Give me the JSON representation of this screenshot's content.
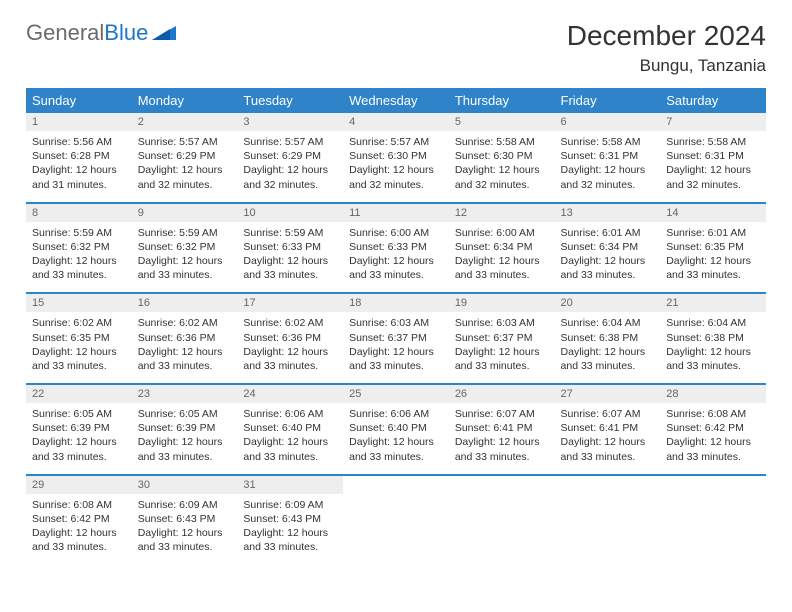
{
  "brand": {
    "part1": "General",
    "part2": "Blue"
  },
  "title": "December 2024",
  "location": "Bungu, Tanzania",
  "colors": {
    "header_blue": "#2e83c9",
    "daynum_bg": "#eeeeee",
    "text": "#333333",
    "logo_gray": "#6b6b6b",
    "logo_blue": "#1f75c9"
  },
  "day_headers": [
    "Sunday",
    "Monday",
    "Tuesday",
    "Wednesday",
    "Thursday",
    "Friday",
    "Saturday"
  ],
  "weeks": [
    [
      {
        "n": "1",
        "sr": "5:56 AM",
        "ss": "6:28 PM",
        "dl": "12 hours and 31 minutes."
      },
      {
        "n": "2",
        "sr": "5:57 AM",
        "ss": "6:29 PM",
        "dl": "12 hours and 32 minutes."
      },
      {
        "n": "3",
        "sr": "5:57 AM",
        "ss": "6:29 PM",
        "dl": "12 hours and 32 minutes."
      },
      {
        "n": "4",
        "sr": "5:57 AM",
        "ss": "6:30 PM",
        "dl": "12 hours and 32 minutes."
      },
      {
        "n": "5",
        "sr": "5:58 AM",
        "ss": "6:30 PM",
        "dl": "12 hours and 32 minutes."
      },
      {
        "n": "6",
        "sr": "5:58 AM",
        "ss": "6:31 PM",
        "dl": "12 hours and 32 minutes."
      },
      {
        "n": "7",
        "sr": "5:58 AM",
        "ss": "6:31 PM",
        "dl": "12 hours and 32 minutes."
      }
    ],
    [
      {
        "n": "8",
        "sr": "5:59 AM",
        "ss": "6:32 PM",
        "dl": "12 hours and 33 minutes."
      },
      {
        "n": "9",
        "sr": "5:59 AM",
        "ss": "6:32 PM",
        "dl": "12 hours and 33 minutes."
      },
      {
        "n": "10",
        "sr": "5:59 AM",
        "ss": "6:33 PM",
        "dl": "12 hours and 33 minutes."
      },
      {
        "n": "11",
        "sr": "6:00 AM",
        "ss": "6:33 PM",
        "dl": "12 hours and 33 minutes."
      },
      {
        "n": "12",
        "sr": "6:00 AM",
        "ss": "6:34 PM",
        "dl": "12 hours and 33 minutes."
      },
      {
        "n": "13",
        "sr": "6:01 AM",
        "ss": "6:34 PM",
        "dl": "12 hours and 33 minutes."
      },
      {
        "n": "14",
        "sr": "6:01 AM",
        "ss": "6:35 PM",
        "dl": "12 hours and 33 minutes."
      }
    ],
    [
      {
        "n": "15",
        "sr": "6:02 AM",
        "ss": "6:35 PM",
        "dl": "12 hours and 33 minutes."
      },
      {
        "n": "16",
        "sr": "6:02 AM",
        "ss": "6:36 PM",
        "dl": "12 hours and 33 minutes."
      },
      {
        "n": "17",
        "sr": "6:02 AM",
        "ss": "6:36 PM",
        "dl": "12 hours and 33 minutes."
      },
      {
        "n": "18",
        "sr": "6:03 AM",
        "ss": "6:37 PM",
        "dl": "12 hours and 33 minutes."
      },
      {
        "n": "19",
        "sr": "6:03 AM",
        "ss": "6:37 PM",
        "dl": "12 hours and 33 minutes."
      },
      {
        "n": "20",
        "sr": "6:04 AM",
        "ss": "6:38 PM",
        "dl": "12 hours and 33 minutes."
      },
      {
        "n": "21",
        "sr": "6:04 AM",
        "ss": "6:38 PM",
        "dl": "12 hours and 33 minutes."
      }
    ],
    [
      {
        "n": "22",
        "sr": "6:05 AM",
        "ss": "6:39 PM",
        "dl": "12 hours and 33 minutes."
      },
      {
        "n": "23",
        "sr": "6:05 AM",
        "ss": "6:39 PM",
        "dl": "12 hours and 33 minutes."
      },
      {
        "n": "24",
        "sr": "6:06 AM",
        "ss": "6:40 PM",
        "dl": "12 hours and 33 minutes."
      },
      {
        "n": "25",
        "sr": "6:06 AM",
        "ss": "6:40 PM",
        "dl": "12 hours and 33 minutes."
      },
      {
        "n": "26",
        "sr": "6:07 AM",
        "ss": "6:41 PM",
        "dl": "12 hours and 33 minutes."
      },
      {
        "n": "27",
        "sr": "6:07 AM",
        "ss": "6:41 PM",
        "dl": "12 hours and 33 minutes."
      },
      {
        "n": "28",
        "sr": "6:08 AM",
        "ss": "6:42 PM",
        "dl": "12 hours and 33 minutes."
      }
    ],
    [
      {
        "n": "29",
        "sr": "6:08 AM",
        "ss": "6:42 PM",
        "dl": "12 hours and 33 minutes."
      },
      {
        "n": "30",
        "sr": "6:09 AM",
        "ss": "6:43 PM",
        "dl": "12 hours and 33 minutes."
      },
      {
        "n": "31",
        "sr": "6:09 AM",
        "ss": "6:43 PM",
        "dl": "12 hours and 33 minutes."
      },
      null,
      null,
      null,
      null
    ]
  ],
  "labels": {
    "sunrise": "Sunrise: ",
    "sunset": "Sunset: ",
    "daylight": "Daylight: "
  }
}
